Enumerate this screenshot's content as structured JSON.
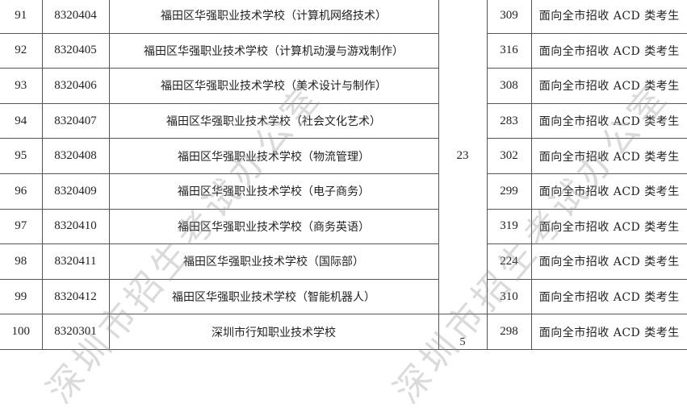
{
  "rows": [
    {
      "no": "91",
      "code": "8320404",
      "school": "福田区华强职业技术学校（计算机网络技术）",
      "score": "309",
      "category": "面向全市招收 ACD 类考生"
    },
    {
      "no": "92",
      "code": "8320405",
      "school": "福田区华强职业技术学校（计算机动漫与游戏制作）",
      "score": "316",
      "category": "面向全市招收 ACD 类考生"
    },
    {
      "no": "93",
      "code": "8320406",
      "school": "福田区华强职业技术学校（美术设计与制作）",
      "score": "308",
      "category": "面向全市招收 ACD 类考生"
    },
    {
      "no": "94",
      "code": "8320407",
      "school": "福田区华强职业技术学校（社会文化艺术）",
      "score": "283",
      "category": "面向全市招收 ACD 类考生"
    },
    {
      "no": "95",
      "code": "8320408",
      "school": "福田区华强职业技术学校（物流管理）",
      "score": "302",
      "category": "面向全市招收 ACD 类考生"
    },
    {
      "no": "96",
      "code": "8320409",
      "school": "福田区华强职业技术学校（电子商务）",
      "score": "299",
      "category": "面向全市招收 ACD 类考生"
    },
    {
      "no": "97",
      "code": "8320410",
      "school": "福田区华强职业技术学校（商务英语）",
      "score": "319",
      "category": "面向全市招收 ACD 类考生"
    },
    {
      "no": "98",
      "code": "8320411",
      "school": "福田区华强职业技术学校（国际部）",
      "score": "224",
      "category": "面向全市招收 ACD 类考生"
    },
    {
      "no": "99",
      "code": "8320412",
      "school": "福田区华强职业技术学校（智能机器人）",
      "score": "310",
      "category": "面向全市招收 ACD 类考生"
    },
    {
      "no": "100",
      "code": "8320301",
      "school": "深圳市行知职业技术学校",
      "score": "298",
      "category": "面向全市招收 ACD 类考生"
    }
  ],
  "merged": {
    "group1": "23",
    "group2": "5"
  },
  "watermark": "深圳市招生考试办公室"
}
